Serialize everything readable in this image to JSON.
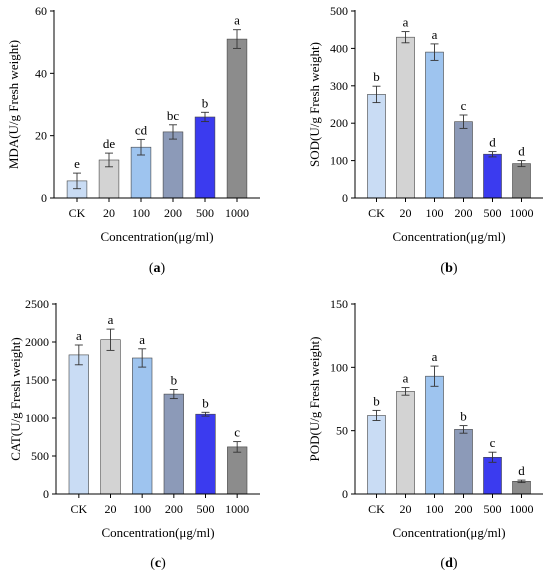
{
  "colors": {
    "CK": "#c9dcf4",
    "20": "#d3d3d3",
    "100": "#9ec4ef",
    "200": "#8c9ab8",
    "500": "#3b3bef",
    "1000": "#8c8c8c"
  },
  "chart_data": [
    {
      "type": "bar",
      "panel": "a",
      "categories": [
        "CK",
        "20",
        "100",
        "200",
        "500",
        "1000"
      ],
      "values": [
        5.5,
        12.2,
        16.3,
        21.2,
        26.0,
        51.0
      ],
      "errors": [
        2.5,
        2.2,
        2.5,
        2.3,
        1.5,
        3.0
      ],
      "labels": [
        "e",
        "de",
        "cd",
        "bc",
        "b",
        "a"
      ],
      "xlabel": "Concentration(μg/ml)",
      "ylabel": "MDA(U/g Fresh weight)",
      "ylim": [
        0,
        60
      ],
      "yticks": [
        0,
        20,
        40,
        60
      ]
    },
    {
      "type": "bar",
      "panel": "b",
      "categories": [
        "CK",
        "20",
        "100",
        "200",
        "500",
        "1000"
      ],
      "values": [
        277,
        430,
        390,
        204,
        117,
        92
      ],
      "errors": [
        22,
        15,
        22,
        18,
        7,
        8
      ],
      "labels": [
        "b",
        "a",
        "a",
        "c",
        "d",
        "d"
      ],
      "xlabel": "Concentration(μg/ml)",
      "ylabel": "SOD(U/g Fresh weight)",
      "ylim": [
        0,
        500
      ],
      "yticks": [
        0,
        100,
        200,
        300,
        400,
        500
      ]
    },
    {
      "type": "bar",
      "panel": "c",
      "categories": [
        "CK",
        "20",
        "100",
        "200",
        "500",
        "1000"
      ],
      "values": [
        1830,
        2030,
        1790,
        1315,
        1050,
        620
      ],
      "errors": [
        130,
        140,
        120,
        60,
        25,
        70
      ],
      "labels": [
        "a",
        "a",
        "a",
        "b",
        "b",
        "c"
      ],
      "xlabel": "Concentration(μg/ml)",
      "ylabel": "CAT(U/g Fresh weight)",
      "ylim": [
        0,
        2500
      ],
      "yticks": [
        0,
        500,
        1000,
        1500,
        2000,
        2500
      ]
    },
    {
      "type": "bar",
      "panel": "d",
      "categories": [
        "CK",
        "20",
        "100",
        "200",
        "500",
        "1000"
      ],
      "values": [
        62,
        81,
        93,
        51,
        29,
        10
      ],
      "errors": [
        4,
        3,
        8,
        3,
        4,
        1
      ],
      "labels": [
        "b",
        "a",
        "a",
        "b",
        "c",
        "d"
      ],
      "xlabel": "Concentration(μg/ml)",
      "ylabel": "POD(U/g Fresh weight)",
      "ylim": [
        0,
        150
      ],
      "yticks": [
        0,
        50,
        100,
        150
      ]
    }
  ]
}
